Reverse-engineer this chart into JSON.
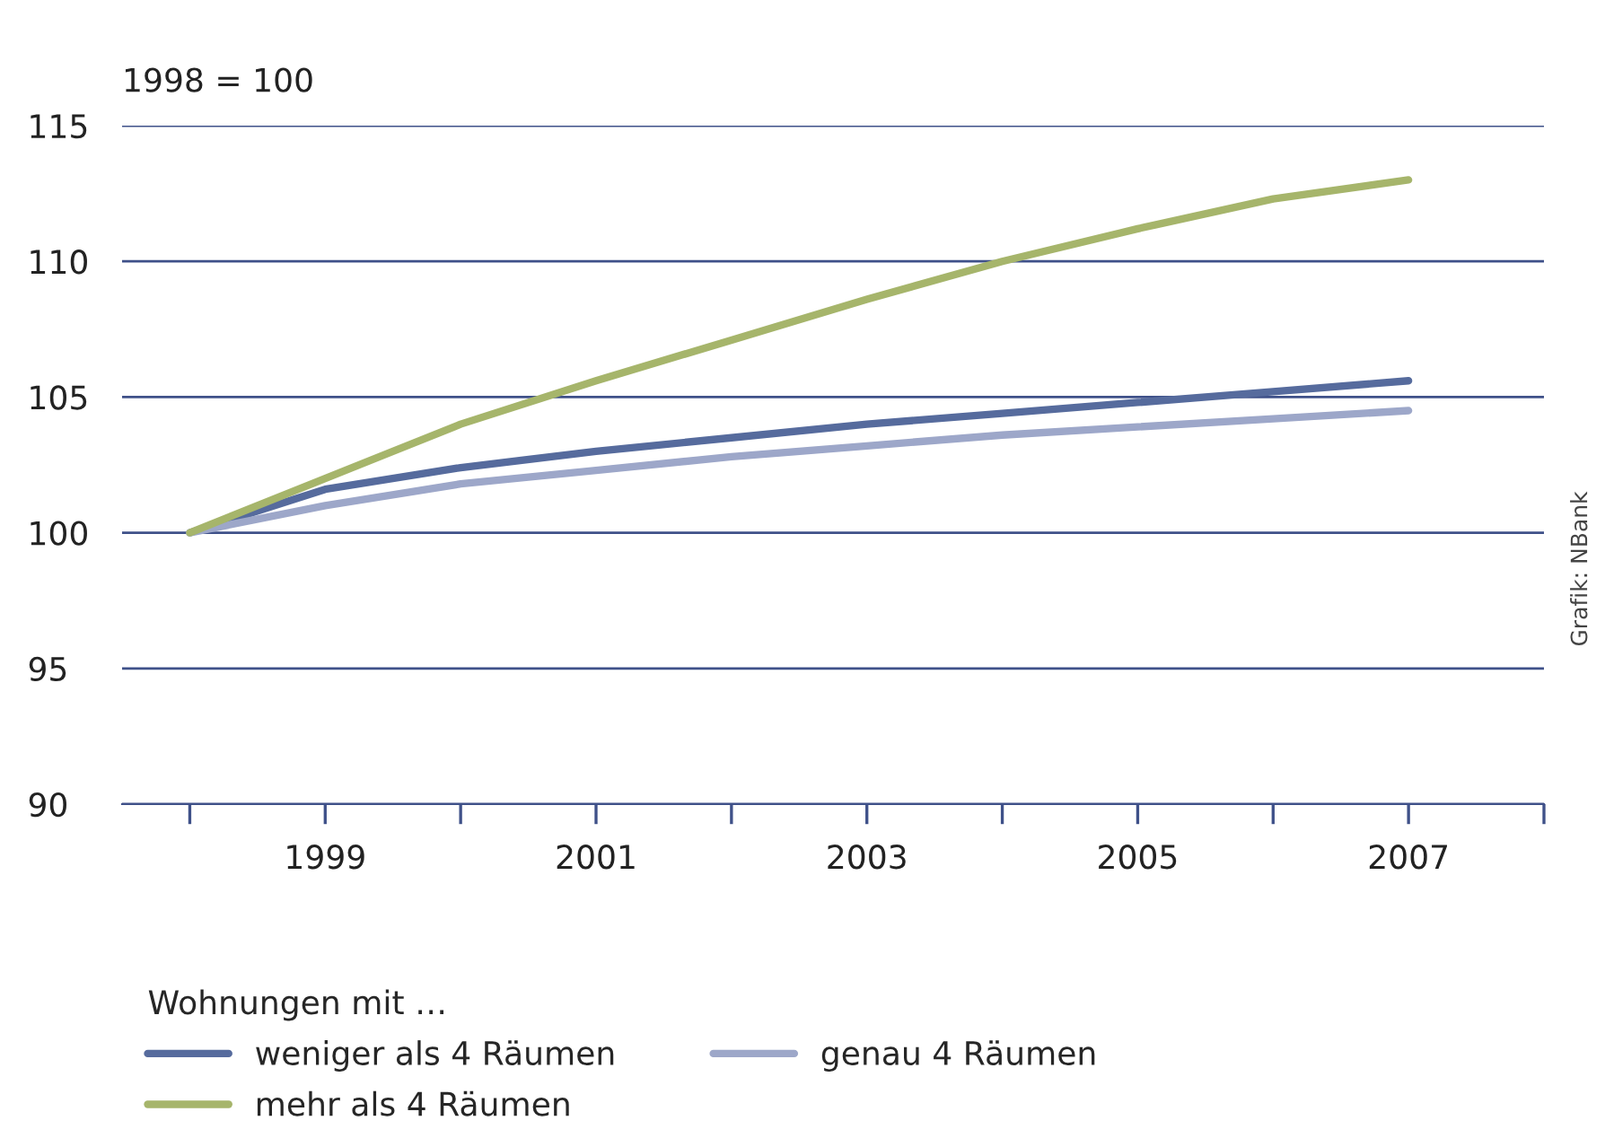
{
  "chart_data": {
    "type": "line",
    "ylabel": "1998 = 100",
    "legend_title": "Wohnungen mit …",
    "x": [
      1998,
      1999,
      2000,
      2001,
      2002,
      2003,
      2004,
      2005,
      2006,
      2007
    ],
    "series": [
      {
        "name": "weniger als 4 Räumen",
        "color": "#566b9d",
        "values": [
          100,
          101.6,
          102.4,
          103.0,
          103.5,
          104.0,
          104.4,
          104.8,
          105.2,
          105.6
        ]
      },
      {
        "name": "genau 4 Räumen",
        "color": "#9da7c9",
        "values": [
          100,
          101.0,
          101.8,
          102.3,
          102.8,
          103.2,
          103.6,
          103.9,
          104.2,
          104.5
        ]
      },
      {
        "name": "mehr als 4 Räumen",
        "color": "#a6b56b",
        "values": [
          100,
          102.0,
          104.0,
          105.6,
          107.1,
          108.6,
          110.0,
          111.2,
          112.3,
          113.0
        ]
      }
    ],
    "xlim": [
      1997.5,
      2008
    ],
    "ylim": [
      90,
      115
    ],
    "xticks": [
      {
        "value": 1998,
        "label": null
      },
      1999,
      {
        "value": 2000,
        "label": null
      },
      2001,
      {
        "value": 2002,
        "label": null
      },
      2003,
      {
        "value": 2004,
        "label": null
      },
      2005,
      {
        "value": 2006,
        "label": null
      },
      2007,
      {
        "value": 2008,
        "label": null
      }
    ],
    "yticks": [
      90,
      95,
      100,
      105,
      110,
      115
    ],
    "grid": "y",
    "legend": "bottom",
    "marker": "none",
    "line_style": "solid",
    "annotations": [
      "Grafik: NBank"
    ]
  }
}
